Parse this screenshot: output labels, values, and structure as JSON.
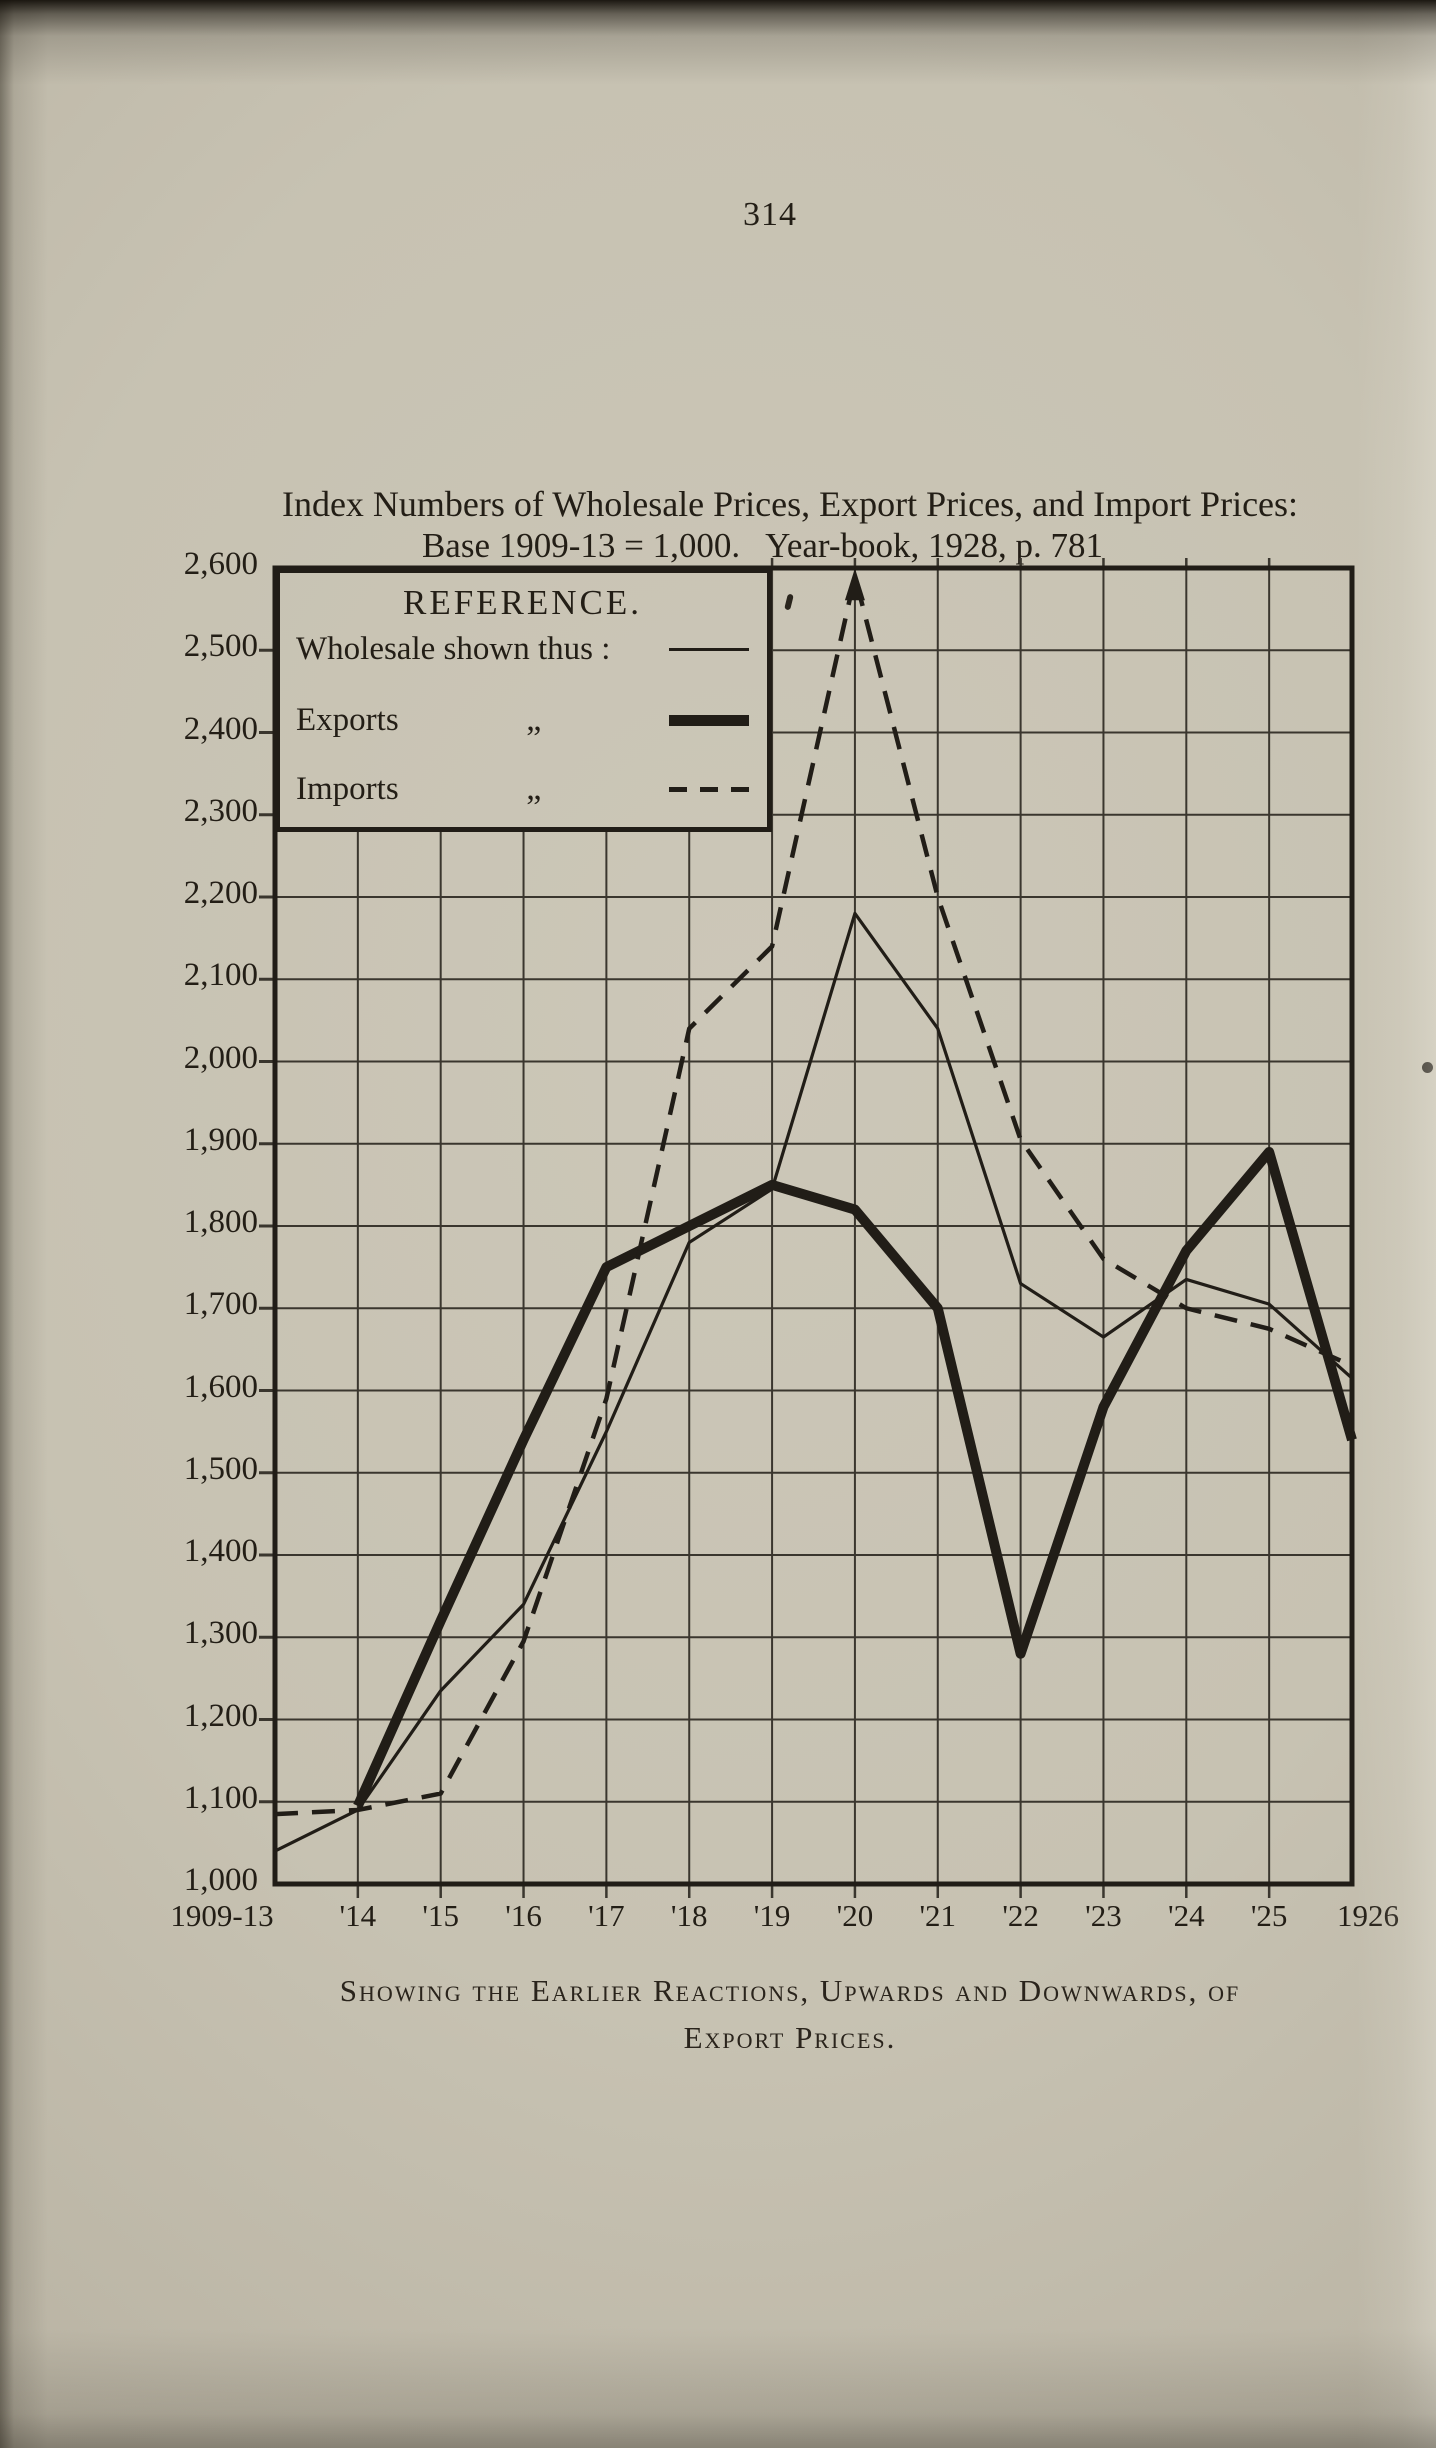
{
  "page": {
    "number": "314"
  },
  "title": {
    "line1": "Index Numbers of Wholesale Prices, Export Prices, and Import Prices:",
    "line2": "Base 1909-13 = 1,000.   Year-book, 1928, p. 781"
  },
  "legend": {
    "heading": "REFERENCE.",
    "items": [
      {
        "label": "Wholesale shown thus :",
        "ditto": "",
        "style": "thin-solid"
      },
      {
        "label": "Exports",
        "ditto": "„",
        "style": "thick-solid"
      },
      {
        "label": "Imports",
        "ditto": "„",
        "style": "dashed"
      }
    ]
  },
  "caption": {
    "line1": "Showing the Earlier Reactions, Upwards and Downwards, of",
    "line2": "Export Prices."
  },
  "chart_data": {
    "type": "line",
    "title": "Index Numbers of Wholesale Prices, Export Prices, and Import Prices",
    "base_note": "Base 1909-13 = 1,000.",
    "source": "Year-book, 1928, p. 781",
    "grid": true,
    "legend_position": "top-left-inset",
    "x_categories": [
      "1909-13",
      "'14",
      "'15",
      "'16",
      "'17",
      "'18",
      "'19",
      "'20",
      "'21",
      "'22",
      "'23",
      "'24",
      "'25",
      "1926"
    ],
    "y_axis": {
      "min": 1000,
      "max": 2600,
      "step": 100,
      "tick_labels": [
        "2,600",
        "2,500",
        "2,400",
        "2,300",
        "2,200",
        "2,100",
        "2,000",
        "1,900",
        "1,800",
        "1,700",
        "1,600",
        "1,500",
        "1,400",
        "1,300",
        "1,200",
        "1,100",
        "1,000"
      ]
    },
    "series": [
      {
        "name": "Wholesale",
        "line_style": "thin-solid",
        "values": [
          1040,
          1090,
          1235,
          1340,
          1550,
          1780,
          1845,
          2180,
          2040,
          1730,
          1665,
          1735,
          1705,
          1615
        ]
      },
      {
        "name": "Exports",
        "line_style": "thick-solid",
        "values": [
          null,
          1095,
          1320,
          1540,
          1750,
          1800,
          1850,
          1820,
          1700,
          1280,
          1580,
          1770,
          1890,
          1540
        ]
      },
      {
        "name": "Imports",
        "line_style": "dashed",
        "peak_arrow": true,
        "values": [
          1085,
          1090,
          1110,
          1295,
          1590,
          2040,
          2140,
          2590,
          2200,
          1905,
          1760,
          1700,
          1675,
          1630
        ]
      }
    ]
  }
}
